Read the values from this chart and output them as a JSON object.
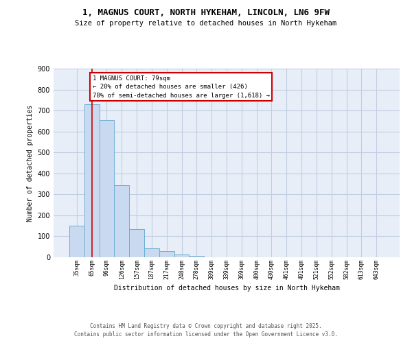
{
  "title_line1": "1, MAGNUS COURT, NORTH HYKEHAM, LINCOLN, LN6 9FW",
  "title_line2": "Size of property relative to detached houses in North Hykeham",
  "xlabel": "Distribution of detached houses by size in North Hykeham",
  "ylabel": "Number of detached properties",
  "bar_values": [
    150,
    730,
    655,
    345,
    135,
    42,
    30,
    12,
    8,
    0,
    0,
    0,
    0,
    0,
    0,
    0,
    0,
    0,
    0,
    0,
    0
  ],
  "categories": [
    "35sqm",
    "65sqm",
    "96sqm",
    "126sqm",
    "157sqm",
    "187sqm",
    "217sqm",
    "248sqm",
    "278sqm",
    "309sqm",
    "339sqm",
    "369sqm",
    "400sqm",
    "430sqm",
    "461sqm",
    "491sqm",
    "521sqm",
    "552sqm",
    "582sqm",
    "613sqm",
    "643sqm"
  ],
  "bar_color": "#c8d9f0",
  "bar_edge_color": "#6baed6",
  "grid_color": "#c0cce0",
  "background_color": "#e8eef8",
  "vline_x": 1,
  "vline_color": "#cc0000",
  "annotation_text": "1 MAGNUS COURT: 79sqm\n← 20% of detached houses are smaller (426)\n78% of semi-detached houses are larger (1,618) →",
  "ylim_max": 900,
  "yticks": [
    0,
    100,
    200,
    300,
    400,
    500,
    600,
    700,
    800,
    900
  ],
  "footer_line1": "Contains HM Land Registry data © Crown copyright and database right 2025.",
  "footer_line2": "Contains public sector information licensed under the Open Government Licence v3.0."
}
